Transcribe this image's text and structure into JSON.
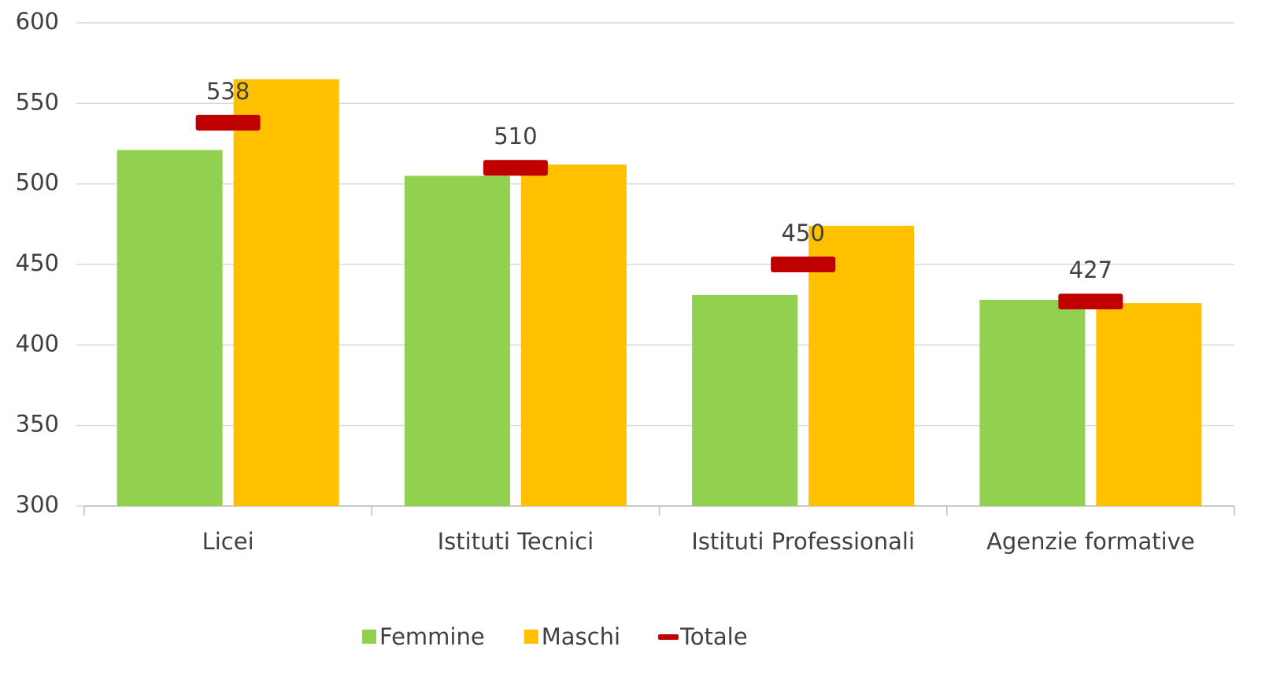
{
  "chart_data": {
    "type": "bar",
    "categories": [
      "Licei",
      "Istituti Tecnici",
      "Istituti Professionali",
      "Agenzie formative"
    ],
    "series": [
      {
        "name": "Femmine",
        "color": "#92d050",
        "values": [
          521,
          505,
          431,
          428
        ]
      },
      {
        "name": "Maschi",
        "color": "#ffc000",
        "values": [
          565,
          512,
          474,
          426
        ]
      },
      {
        "name": "Totale",
        "color": "#c00000",
        "marker": "dash",
        "data_labels": true,
        "values": [
          538,
          510,
          450,
          427
        ]
      }
    ],
    "ylim": [
      300,
      600
    ],
    "yticks": [
      300,
      350,
      400,
      450,
      500,
      550,
      600
    ],
    "grid": true,
    "legend": "bottom"
  }
}
